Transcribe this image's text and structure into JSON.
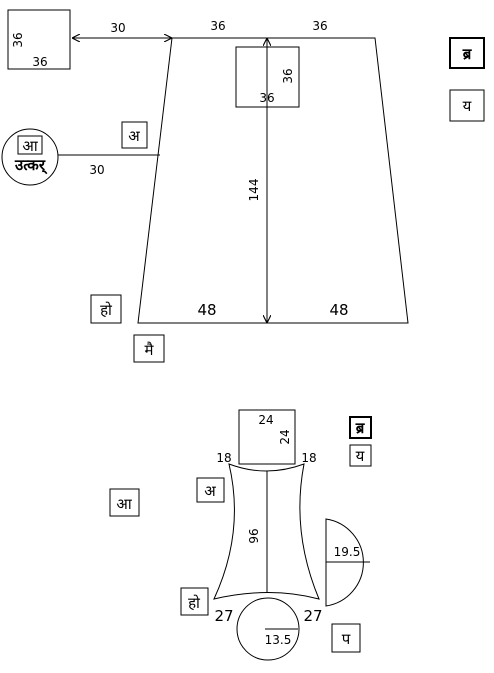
{
  "top": {
    "square": {
      "side_left": "36",
      "side_bottom": "36"
    },
    "gap": "30",
    "top_left": "36",
    "top_right": "36",
    "inner_square": {
      "side_right": "36",
      "side_bottom": "36"
    },
    "height": "144",
    "bottom_left": "48",
    "bottom_right": "48",
    "side_label_a": "अ",
    "circle_top": "आ",
    "circle_bottom": "उत्कर्",
    "circle_line": "30",
    "label_ho": "हो",
    "label_mai": "मै",
    "right_box_1": "ब्र",
    "right_box_2": "य"
  },
  "bottom": {
    "square_top": "24",
    "square_right": "24",
    "left_top": "18",
    "right_top": "18",
    "height": "96",
    "left_bottom": "27",
    "right_bottom": "27",
    "semicircle": "19.5",
    "circle": "13.5",
    "label_a": "अ",
    "label_aa": "आ",
    "label_ho": "हो",
    "label_pa": "प",
    "right_box_1": "ब्र",
    "right_box_2": "य"
  }
}
